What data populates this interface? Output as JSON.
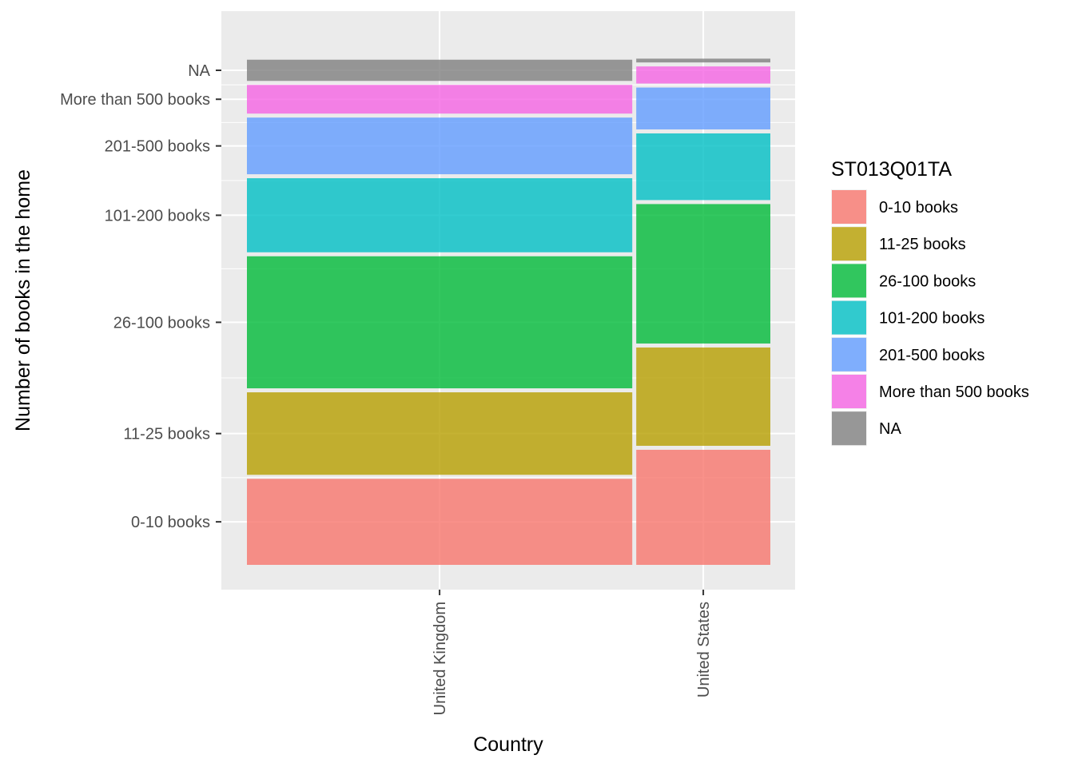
{
  "chart_data": {
    "type": "mosaic",
    "xlabel": "Country",
    "ylabel": "Number of books in the home",
    "legend": {
      "title": "ST013Q01TA",
      "position": "right",
      "entries": [
        "0-10 books",
        "11-25 books",
        "26-100 books",
        "101-200 books",
        "201-500 books",
        "More than 500 books",
        "NA"
      ]
    },
    "colors": {
      "0-10 books": "#F8766D",
      "11-25 books": "#B79F00",
      "26-100 books": "#00BA38",
      "101-200 books": "#00BFC4",
      "201-500 books": "#619CFF",
      "More than 500 books": "#F564E3",
      "NA": "#7F7F7F"
    },
    "grid": true,
    "categories": [
      "0-10 books",
      "11-25 books",
      "26-100 books",
      "101-200 books",
      "201-500 books",
      "More than 500 books",
      "NA"
    ],
    "y_tick_labels": [
      "0-10 books",
      "11-25 books",
      "26-100 books",
      "101-200 books",
      "201-500 books",
      "More than 500 books",
      "NA"
    ],
    "x_tick_labels": [
      "United Kingdom",
      "United States"
    ],
    "countries": [
      {
        "name": "United Kingdom",
        "width_share": 0.74,
        "proportions": [
          0.167,
          0.164,
          0.258,
          0.148,
          0.115,
          0.062,
          0.044
        ]
      },
      {
        "name": "United States",
        "width_share": 0.26,
        "proportions": [
          0.222,
          0.194,
          0.272,
          0.134,
          0.087,
          0.04,
          0.011
        ]
      }
    ]
  }
}
